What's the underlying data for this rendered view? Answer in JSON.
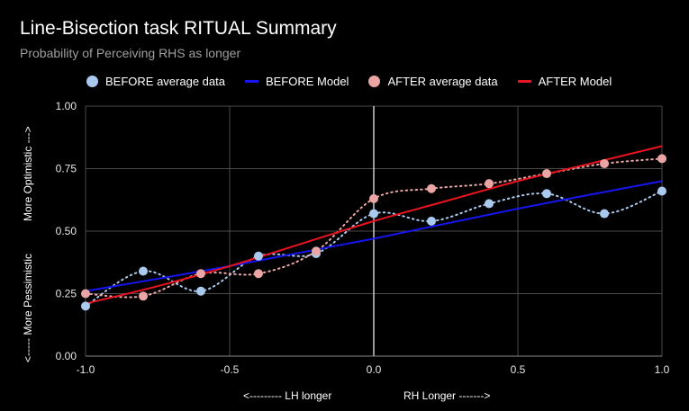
{
  "chart_data": {
    "type": "line",
    "title": "Line-Bisection task RITUAL Summary",
    "subtitle": "Probability of Perceiving RHS as longer",
    "xlabel_left": "<--------- LH longer",
    "xlabel_right": "RH Longer ------->",
    "ylabel_top": "More Optimistic --->",
    "ylabel_bottom": "<----- More Pessimistic",
    "xlim": [
      -1.0,
      1.0
    ],
    "ylim": [
      0.0,
      1.0
    ],
    "x_ticks": [
      "-1.0",
      "-0.5",
      "0.0",
      "0.5",
      "1.0"
    ],
    "y_ticks": [
      "0.00",
      "0.25",
      "0.50",
      "0.75",
      "1.00"
    ],
    "legend_position": "top",
    "grid": true,
    "series": [
      {
        "name": "BEFORE average data",
        "kind": "points-dotted",
        "color": "#a9c9ee",
        "x": [
          -1.0,
          -0.8,
          -0.6,
          -0.4,
          -0.2,
          0.0,
          0.2,
          0.4,
          0.6,
          0.8,
          1.0
        ],
        "y": [
          0.2,
          0.34,
          0.26,
          0.4,
          0.41,
          0.57,
          0.54,
          0.61,
          0.65,
          0.57,
          0.66
        ]
      },
      {
        "name": "BEFORE Model",
        "kind": "line",
        "color": "#1515ee",
        "x": [
          -1.0,
          -0.5,
          0.0,
          0.5,
          1.0
        ],
        "y": [
          0.26,
          0.36,
          0.47,
          0.59,
          0.7
        ]
      },
      {
        "name": "AFTER average data",
        "kind": "points-dotted",
        "color": "#eba5a5",
        "x": [
          -1.0,
          -0.8,
          -0.6,
          -0.4,
          -0.2,
          0.0,
          0.2,
          0.4,
          0.6,
          0.8,
          1.0
        ],
        "y": [
          0.25,
          0.24,
          0.33,
          0.33,
          0.42,
          0.63,
          0.67,
          0.69,
          0.73,
          0.77,
          0.79
        ]
      },
      {
        "name": "AFTER Model",
        "kind": "line",
        "color": "#e8141f",
        "x": [
          -1.0,
          -0.75,
          -0.5,
          -0.25,
          0.0,
          0.25,
          0.5,
          0.75,
          1.0
        ],
        "y": [
          0.21,
          0.28,
          0.36,
          0.45,
          0.54,
          0.62,
          0.7,
          0.77,
          0.84
        ]
      }
    ]
  }
}
